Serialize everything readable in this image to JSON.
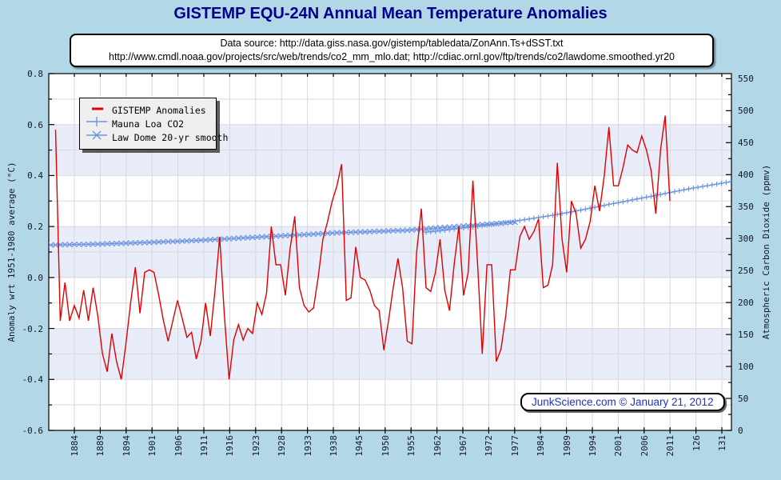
{
  "title": "GISTEMP EQU-24N Annual Mean Temperature Anomalies",
  "subtitle": {
    "line1": "Data source: http://data.giss.nasa.gov/gistemp/tabledata/ZonAnn.Ts+dSST.txt",
    "line2": "http://www.cmdl.noaa.gov/projects/src/web/trends/co2_mm_mlo.dat; http://cdiac.ornl.gov/ftp/trends/co2/lawdome.smoothed.yr20"
  },
  "badge_text": "JunkScience.com © January 21, 2012",
  "colors": {
    "background": "#b2d8e8",
    "plot_bg": "#ffffff",
    "band": "#e8edf9",
    "grid": "#d9d9d9",
    "axis": "#000000",
    "gistemp_red": "#e00000",
    "co2_blue": "#6e96e0",
    "title_navy": "#00008b",
    "badge_blue": "#2233bb"
  },
  "legend": {
    "items": [
      {
        "label": "GISTEMP Anomalies",
        "marker": "thick-dash",
        "color": "#e00000"
      },
      {
        "label": "Mauna Loa CO2",
        "marker": "plus",
        "color": "#6e96e0"
      },
      {
        "label": "Law Dome 20-yr smooth",
        "marker": "cross",
        "color": "#6e96e0"
      }
    ]
  },
  "axes": {
    "left": {
      "title": "Anomaly wrt 1951-1980 average (°C)",
      "tick_labels": [
        "0.8",
        "0.6",
        "0.4",
        "0.2",
        "0.0",
        "-0.2",
        "-0.4",
        "-0.6"
      ],
      "tick_values": [
        0.8,
        0.6,
        0.4,
        0.2,
        0.0,
        -0.2,
        -0.4,
        -0.6
      ],
      "range": [
        -0.6,
        0.8
      ],
      "minor_step": 0.1
    },
    "right": {
      "title": "Atmospheric Carbon Dioxide (ppmv)",
      "tick_labels": [
        "550",
        "500",
        "450",
        "400",
        "350",
        "300",
        "250",
        "200",
        "150",
        "100",
        "50",
        "0"
      ],
      "tick_values": [
        550,
        500,
        450,
        400,
        350,
        300,
        250,
        200,
        150,
        100,
        50,
        0
      ],
      "range": [
        0,
        558
      ],
      "minor_step": 25
    },
    "x": {
      "tick_labels": [
        "1884",
        "1889",
        "1894",
        "1901",
        "1906",
        "1911",
        "1916",
        "1923",
        "1928",
        "1933",
        "1938",
        "1945",
        "1950",
        "1955",
        "1962",
        "1967",
        "1972",
        "1977",
        "1984",
        "1989",
        "1994",
        "2001",
        "2006",
        "2011",
        "126",
        "131"
      ]
    }
  },
  "chart_data": {
    "type": "line",
    "title": "GISTEMP EQU-24N Annual Mean Temperature Anomalies",
    "grid": true,
    "legend_position": "top-left",
    "band_stripes_every": 0.2,
    "series": [
      {
        "name": "GISTEMP Anomalies",
        "axis": "left",
        "unit": "°C",
        "start_year": 1880,
        "values": [
          0.58,
          -0.17,
          -0.02,
          -0.17,
          -0.11,
          -0.16,
          -0.05,
          -0.17,
          -0.04,
          -0.15,
          -0.3,
          -0.37,
          -0.22,
          -0.33,
          -0.4,
          -0.26,
          -0.1,
          0.04,
          -0.14,
          0.02,
          0.03,
          0.02,
          -0.07,
          -0.17,
          -0.25,
          -0.17,
          -0.09,
          -0.16,
          -0.235,
          -0.215,
          -0.32,
          -0.25,
          -0.1,
          -0.23,
          -0.05,
          0.16,
          -0.15,
          -0.4,
          -0.245,
          -0.185,
          -0.245,
          -0.2,
          -0.22,
          -0.1,
          -0.145,
          -0.06,
          0.2,
          0.05,
          0.05,
          -0.07,
          0.11,
          0.24,
          -0.04,
          -0.11,
          -0.135,
          -0.12,
          0.0,
          0.15,
          0.22,
          0.3,
          0.36,
          0.445,
          -0.09,
          -0.08,
          0.12,
          0.0,
          -0.01,
          -0.05,
          -0.11,
          -0.13,
          -0.285,
          -0.17,
          -0.04,
          0.075,
          -0.04,
          -0.25,
          -0.26,
          0.1,
          0.27,
          -0.04,
          -0.055,
          0.02,
          0.15,
          -0.05,
          -0.13,
          0.05,
          0.2,
          -0.07,
          0.02,
          0.38,
          0.05,
          -0.3,
          0.05,
          0.05,
          -0.33,
          -0.28,
          -0.15,
          0.03,
          0.03,
          0.16,
          0.2,
          0.15,
          0.18,
          0.23,
          -0.04,
          -0.03,
          0.05,
          0.45,
          0.15,
          0.02,
          0.3,
          0.25,
          0.115,
          0.15,
          0.22,
          0.36,
          0.26,
          0.4,
          0.59,
          0.36,
          0.36,
          0.43,
          0.52,
          0.5,
          0.49,
          0.555,
          0.5,
          0.42,
          0.25,
          0.5,
          0.635,
          0.3
        ]
      },
      {
        "name": "Mauna Loa CO2",
        "axis": "right",
        "unit": "ppmv",
        "marker": "plus",
        "markers_every_year": true,
        "anchors": [
          [
            1959,
            310
          ],
          [
            1962,
            312
          ],
          [
            1965,
            315
          ],
          [
            1968,
            317.5
          ],
          [
            1971,
            320
          ],
          [
            1974,
            323
          ],
          [
            1977,
            326
          ],
          [
            1980,
            329.5
          ],
          [
            1983,
            333
          ],
          [
            1986,
            336.5
          ],
          [
            1989,
            340.5
          ],
          [
            1992,
            344.5
          ],
          [
            1995,
            349
          ],
          [
            1998,
            353.5
          ],
          [
            2001,
            357.5
          ],
          [
            2004,
            362
          ],
          [
            2007,
            366
          ],
          [
            2011,
            372
          ],
          [
            2016,
            379
          ],
          [
            2020,
            384
          ],
          [
            2024,
            389
          ]
        ]
      },
      {
        "name": "Law Dome 20-yr smooth",
        "axis": "right",
        "unit": "ppmv",
        "marker": "cross",
        "markers_every_year": true,
        "anchors": [
          [
            1879,
            290
          ],
          [
            1890,
            291.5
          ],
          [
            1900,
            294
          ],
          [
            1910,
            297
          ],
          [
            1920,
            301
          ],
          [
            1930,
            305
          ],
          [
            1940,
            309
          ],
          [
            1950,
            311.5
          ],
          [
            1955,
            313
          ],
          [
            1960,
            316
          ],
          [
            1965,
            318.5
          ],
          [
            1970,
            321.5
          ],
          [
            1975,
            324
          ],
          [
            1978,
            325.5
          ]
        ]
      }
    ]
  }
}
